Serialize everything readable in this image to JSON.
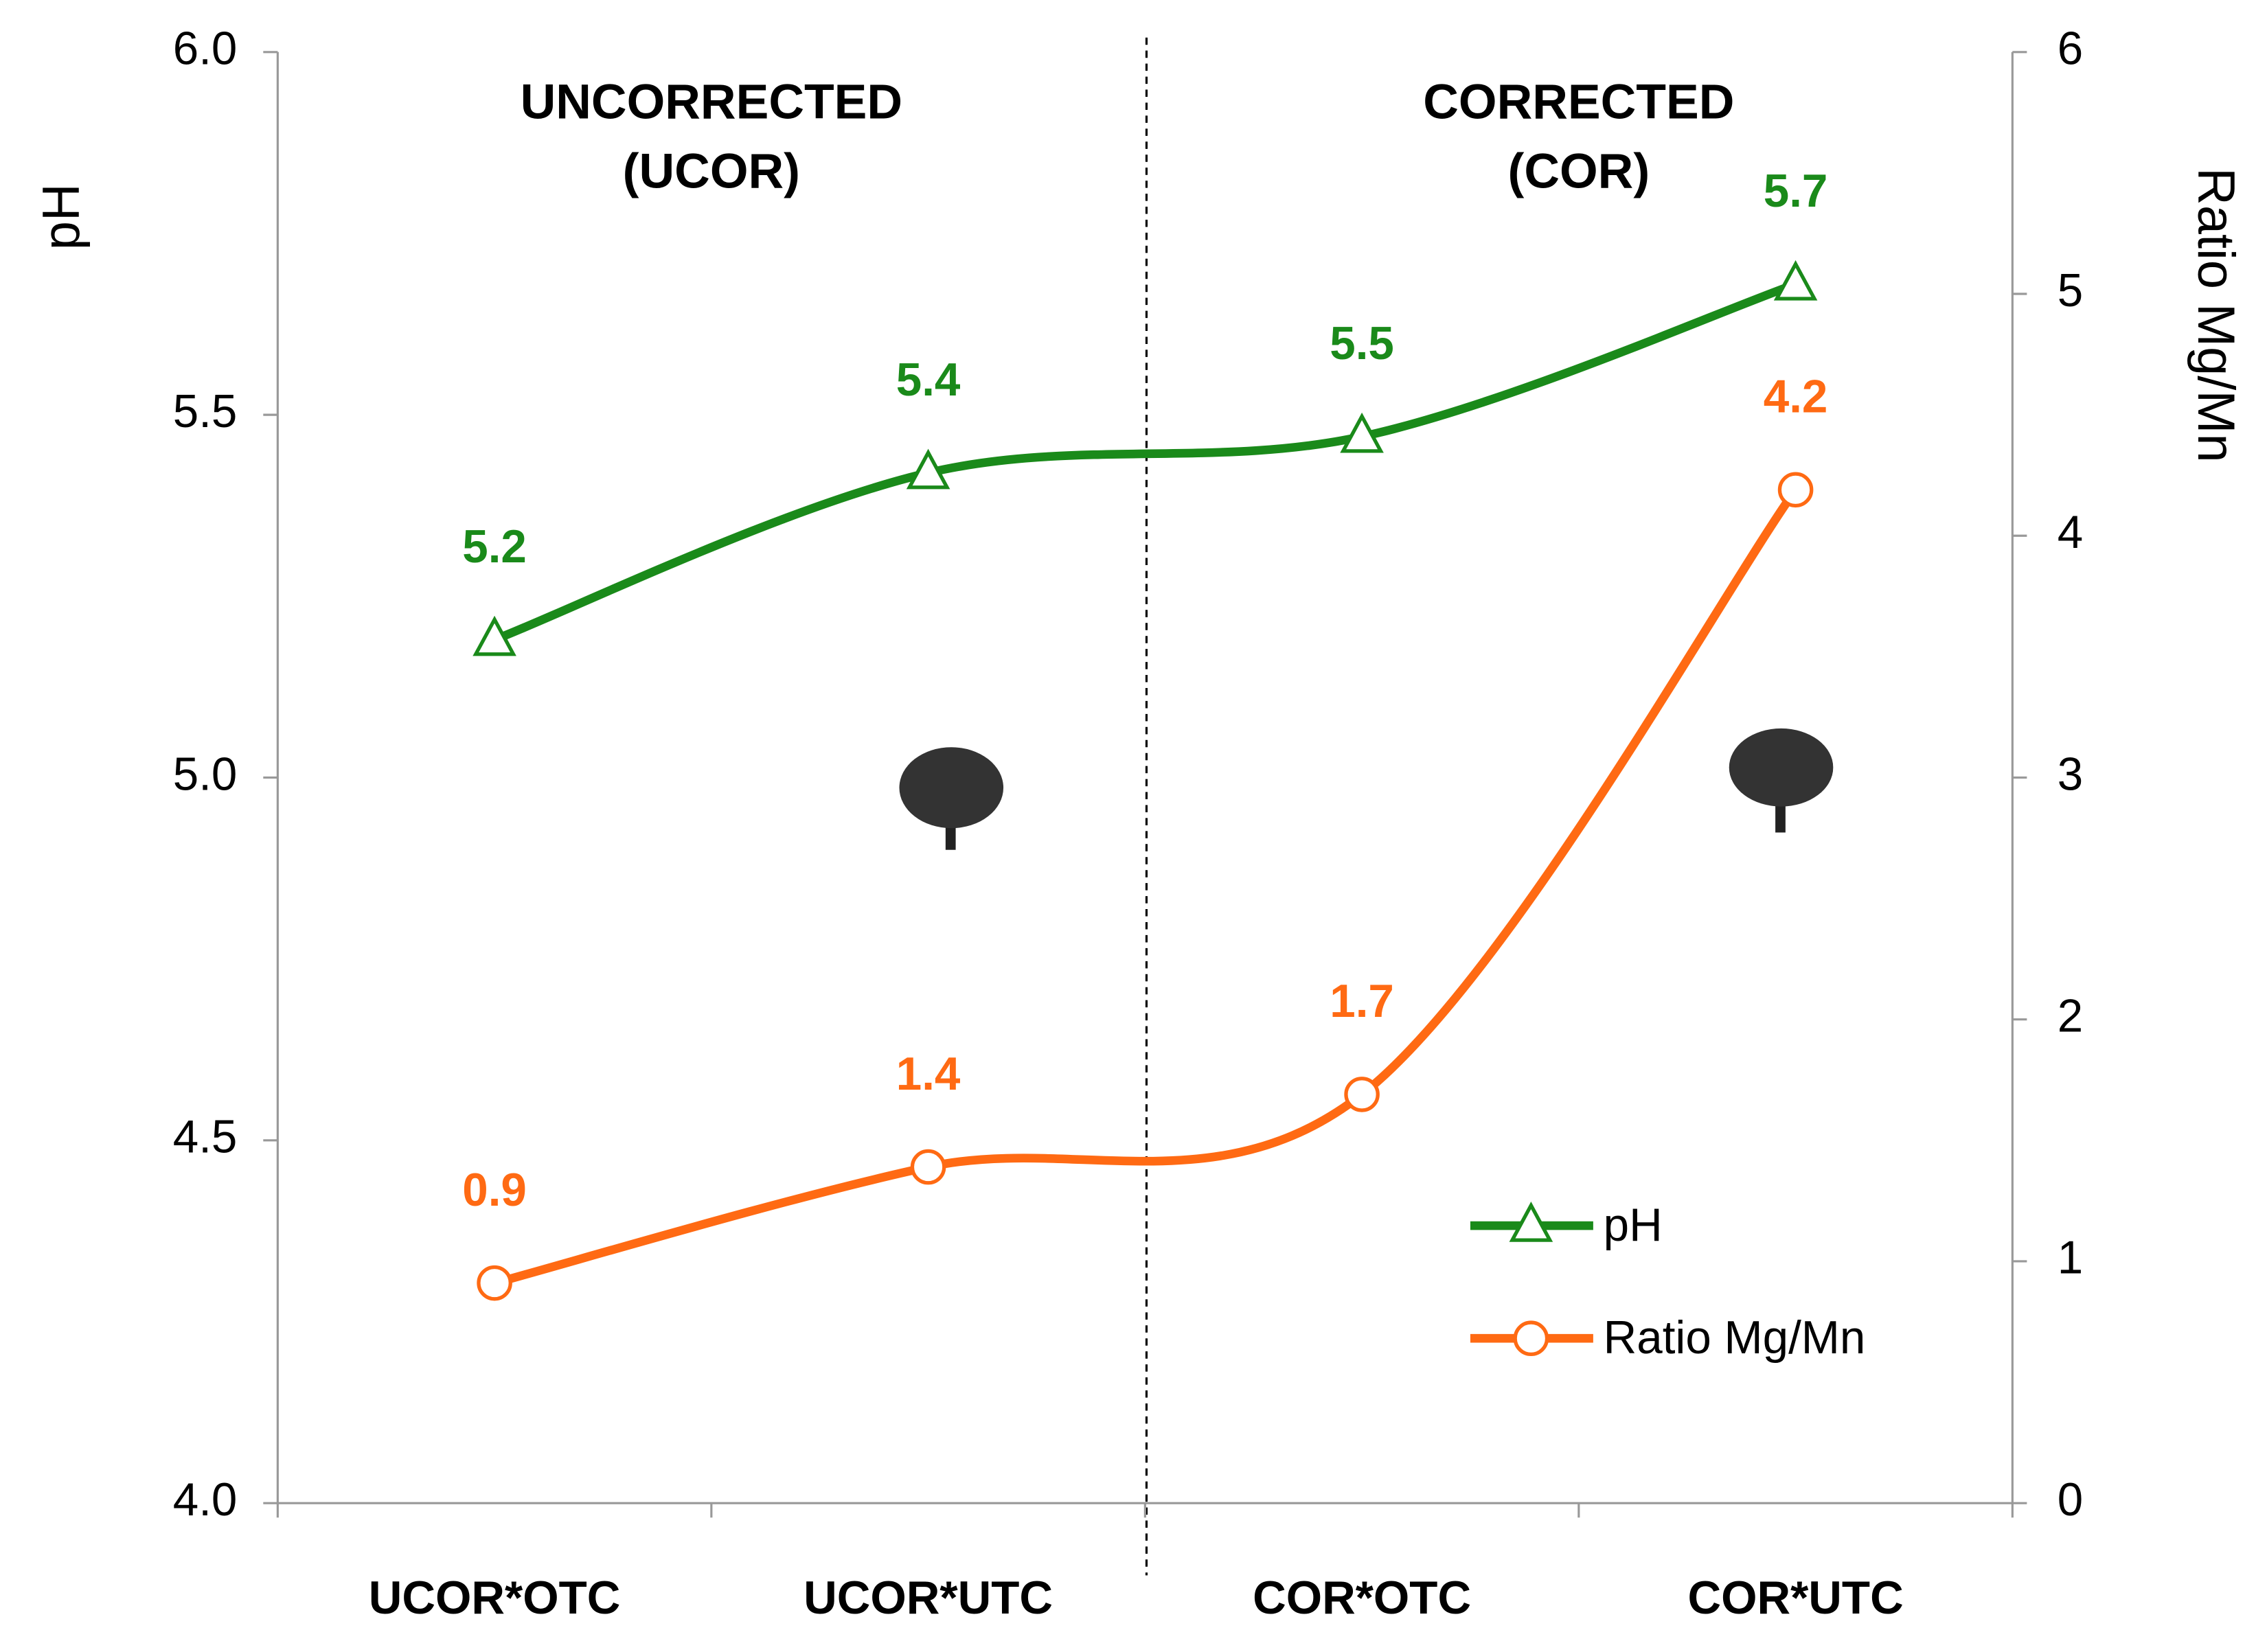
{
  "chart_data": {
    "type": "line",
    "categories": [
      "UCOR*OTC",
      "UCOR*UTC",
      "COR*OTC",
      "COR*UTC"
    ],
    "annotations": [
      {
        "lines": [
          "UNCORRECTED",
          "(UCOR)"
        ]
      },
      {
        "lines": [
          "CORRECTED",
          "(COR)"
        ]
      }
    ],
    "y_label": "pH",
    "y2_label": "Ratio Mg/Mn",
    "ylim": [
      4.0,
      6.0
    ],
    "yticks": [
      {
        "value": 4.0,
        "label": "4.0"
      },
      4.5,
      {
        "value": 5.0,
        "label": "5.0"
      },
      5.5,
      {
        "value": 6.0,
        "label": "6.0"
      }
    ],
    "y2lim": [
      0,
      6
    ],
    "y2ticks": [
      0,
      1,
      2,
      3,
      4,
      5,
      6
    ],
    "legend": "lower right",
    "series": [
      {
        "name": "pH",
        "color": "#1a8a1a",
        "marker": "triangle",
        "values": [
          5.19,
          5.42,
          5.47,
          5.68
        ],
        "value_labels": [
          "5.2",
          "5.4",
          "5.5",
          "5.7"
        ]
      },
      {
        "name": "Ratio Mg/Mn",
        "color": "#ff6a13",
        "marker": "circle",
        "axis": "y2",
        "values": [
          0.91,
          1.39,
          1.69,
          4.19
        ],
        "value_labels": [
          "0.9",
          "1.4",
          "1.7",
          "4.2"
        ]
      }
    ]
  }
}
